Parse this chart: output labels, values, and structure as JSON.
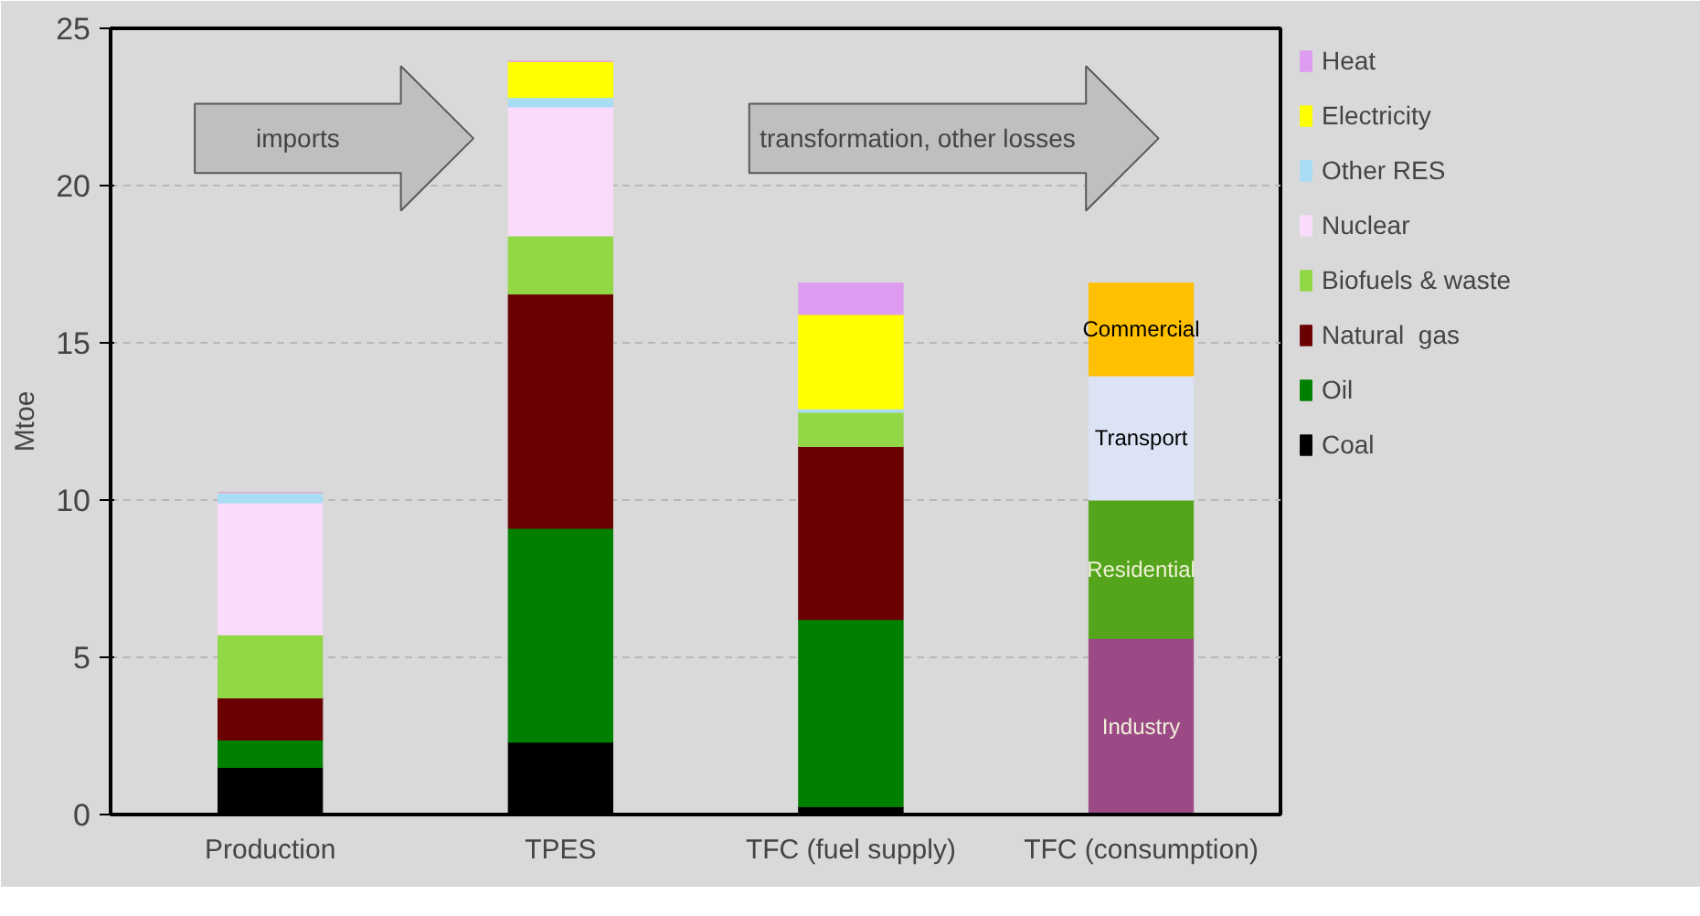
{
  "chart_data": {
    "type": "bar",
    "stacked": true,
    "ylabel": "Mtoe",
    "categories": [
      "Production",
      "TPES",
      "TFC (fuel supply)",
      "TFC (consumption)"
    ],
    "series": [
      {
        "name": "Coal",
        "color": "#000000",
        "values": [
          1.5,
          2.3,
          0.25,
          null
        ]
      },
      {
        "name": "Oil",
        "color": "#008000",
        "values": [
          0.87,
          6.8,
          5.95,
          null
        ]
      },
      {
        "name": "Natural  gas",
        "color": "#6b0000",
        "values": [
          1.34,
          7.45,
          5.5,
          null
        ]
      },
      {
        "name": "Biofuels & waste",
        "color": "#92d846",
        "values": [
          2.0,
          1.85,
          1.1,
          null
        ]
      },
      {
        "name": "Nuclear",
        "color": "#fadcfa",
        "values": [
          4.2,
          4.1,
          0,
          null
        ]
      },
      {
        "name": "Other RES",
        "color": "#a9dcf5",
        "values": [
          0.33,
          0.3,
          0.1,
          null
        ]
      },
      {
        "name": "Electricity",
        "color": "#ffff00",
        "values": [
          0,
          1.15,
          3.0,
          null
        ]
      },
      {
        "name": "Heat",
        "color": "#de9cf0",
        "values": [
          0,
          0,
          1.0,
          null
        ]
      },
      {
        "name": "Industry",
        "color": "#9b4a86",
        "values": [
          null,
          null,
          null,
          5.6
        ]
      },
      {
        "name": "Residential",
        "color": "#55a51c",
        "values": [
          null,
          null,
          null,
          4.4
        ]
      },
      {
        "name": "Transport",
        "color": "#dce3f5",
        "values": [
          null,
          null,
          null,
          3.95
        ]
      },
      {
        "name": "Commercial",
        "color": "#ffc000",
        "values": [
          null,
          null,
          null,
          2.95
        ]
      }
    ],
    "ylim": [
      0,
      25
    ],
    "yticks": [
      0,
      5,
      10,
      15,
      20,
      25
    ],
    "grid": "y",
    "legend": "right",
    "annotations": [
      "imports",
      "transformation, other losses"
    ]
  }
}
